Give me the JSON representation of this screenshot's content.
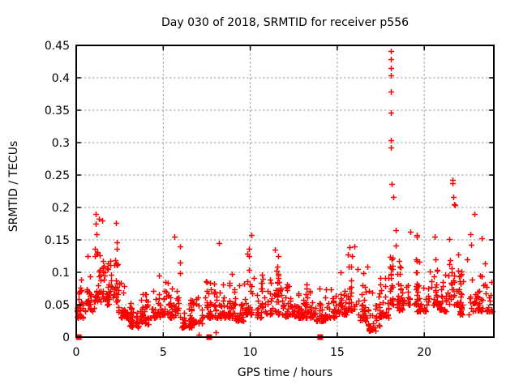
{
  "chart_data": {
    "type": "scatter",
    "title": "Day 030 of 2018, SRMTID for receiver p556",
    "xlabel": "GPS time / hours",
    "ylabel": "SRMTID / TECUs",
    "xlim": [
      0,
      24
    ],
    "ylim": [
      0,
      0.45
    ],
    "xticks": [
      {
        "v": 0,
        "label": "0"
      },
      {
        "v": 5,
        "label": "5"
      },
      {
        "v": 10,
        "label": "10"
      },
      {
        "v": 15,
        "label": "15"
      },
      {
        "v": 20,
        "label": "20"
      }
    ],
    "yticks": [
      {
        "v": 0.0,
        "label": "0"
      },
      {
        "v": 0.05,
        "label": "0.05"
      },
      {
        "v": 0.1,
        "label": "0.1"
      },
      {
        "v": 0.15,
        "label": "0.15"
      },
      {
        "v": 0.2,
        "label": "0.2"
      },
      {
        "v": 0.25,
        "label": "0.25"
      },
      {
        "v": 0.3,
        "label": "0.3"
      },
      {
        "v": 0.35,
        "label": "0.35"
      },
      {
        "v": 0.4,
        "label": "0.4"
      },
      {
        "v": 0.45,
        "label": "0.45"
      }
    ],
    "grid": true,
    "grid_color": "#999999",
    "border_color": "#000000",
    "marker": "plus",
    "marker_color": "#ff0000",
    "series_name": "SRMTID",
    "seed": 20180030,
    "band_envelope_bins_x0_x1_lo_hi_n": [
      [
        0.0,
        0.5,
        0.03,
        0.125,
        30
      ],
      [
        0.5,
        1.0,
        0.04,
        0.16,
        30
      ],
      [
        1.0,
        1.5,
        0.055,
        0.19,
        34
      ],
      [
        1.5,
        2.0,
        0.05,
        0.16,
        32
      ],
      [
        2.0,
        2.4,
        0.055,
        0.18,
        26
      ],
      [
        2.4,
        3.0,
        0.03,
        0.11,
        34
      ],
      [
        3.0,
        3.6,
        0.015,
        0.07,
        38
      ],
      [
        3.6,
        4.2,
        0.02,
        0.08,
        36
      ],
      [
        4.2,
        4.8,
        0.03,
        0.1,
        34
      ],
      [
        4.8,
        5.4,
        0.035,
        0.135,
        32
      ],
      [
        5.4,
        6.0,
        0.03,
        0.155,
        32
      ],
      [
        6.0,
        6.6,
        0.015,
        0.065,
        36
      ],
      [
        6.6,
        7.2,
        0.02,
        0.08,
        34
      ],
      [
        7.2,
        7.8,
        0.03,
        0.105,
        32
      ],
      [
        7.8,
        8.4,
        0.03,
        0.145,
        32
      ],
      [
        8.4,
        9.0,
        0.03,
        0.1,
        34
      ],
      [
        9.0,
        9.6,
        0.025,
        0.09,
        34
      ],
      [
        9.6,
        10.3,
        0.035,
        0.16,
        36
      ],
      [
        10.3,
        11.0,
        0.03,
        0.1,
        36
      ],
      [
        11.0,
        11.7,
        0.035,
        0.135,
        36
      ],
      [
        11.7,
        12.4,
        0.03,
        0.105,
        36
      ],
      [
        12.4,
        13.0,
        0.03,
        0.095,
        34
      ],
      [
        13.0,
        13.6,
        0.03,
        0.1,
        34
      ],
      [
        13.6,
        14.3,
        0.025,
        0.095,
        36
      ],
      [
        14.3,
        15.0,
        0.03,
        0.105,
        36
      ],
      [
        15.0,
        15.6,
        0.035,
        0.125,
        32
      ],
      [
        15.6,
        16.2,
        0.04,
        0.145,
        32
      ],
      [
        16.2,
        16.8,
        0.025,
        0.12,
        32
      ],
      [
        16.8,
        17.4,
        0.01,
        0.1,
        32
      ],
      [
        17.4,
        18.0,
        0.03,
        0.12,
        32
      ],
      [
        18.0,
        18.4,
        0.05,
        0.2,
        24
      ],
      [
        18.4,
        19.0,
        0.04,
        0.14,
        32
      ],
      [
        19.0,
        19.6,
        0.05,
        0.165,
        32
      ],
      [
        19.6,
        20.2,
        0.04,
        0.12,
        32
      ],
      [
        20.2,
        20.8,
        0.05,
        0.155,
        32
      ],
      [
        20.8,
        21.4,
        0.04,
        0.135,
        34
      ],
      [
        21.4,
        22.0,
        0.05,
        0.2,
        32
      ],
      [
        22.0,
        22.6,
        0.035,
        0.16,
        32
      ],
      [
        22.6,
        23.2,
        0.04,
        0.19,
        32
      ],
      [
        23.2,
        23.9,
        0.04,
        0.15,
        30
      ]
    ],
    "outlier_points_x_y": [
      [
        18.08,
        0.441
      ],
      [
        18.08,
        0.429
      ],
      [
        18.1,
        0.415
      ],
      [
        18.1,
        0.404
      ],
      [
        18.08,
        0.379
      ],
      [
        18.1,
        0.346
      ],
      [
        18.1,
        0.304
      ],
      [
        18.1,
        0.292
      ],
      [
        18.14,
        0.236
      ],
      [
        18.2,
        0.216
      ],
      [
        21.62,
        0.242
      ],
      [
        21.62,
        0.237
      ],
      [
        21.65,
        0.216
      ],
      [
        21.7,
        0.205
      ],
      [
        21.76,
        0.204
      ],
      [
        1.12,
        0.19
      ],
      [
        1.3,
        0.183
      ],
      [
        2.28,
        0.176
      ],
      [
        5.62,
        0.155
      ],
      [
        8.2,
        0.145
      ],
      [
        10.05,
        0.158
      ],
      [
        11.42,
        0.135
      ],
      [
        16.0,
        0.14
      ],
      [
        19.2,
        0.163
      ],
      [
        20.6,
        0.155
      ],
      [
        22.9,
        0.19
      ],
      [
        23.3,
        0.152
      ],
      [
        7.05,
        0.004
      ],
      [
        8.01,
        0.008
      ],
      [
        16.9,
        0.011
      ],
      [
        16.95,
        0.013
      ]
    ],
    "zero_square_markers_x": [
      0.15,
      7.64,
      14.02
    ]
  }
}
